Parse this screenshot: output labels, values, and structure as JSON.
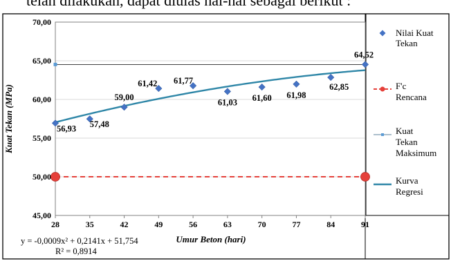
{
  "page_caption_fragment": "telah dilakukan, dapat diulas hal-hal sebagai berikut :",
  "equation": {
    "line1": "y = -0,0009x² + 0,2141x + 51,754",
    "line2": "R² = 0,8914"
  },
  "colors": {
    "points": "#4472c4",
    "target": "#e5403a",
    "max": "#5b9bd5",
    "regression": "#2e86a7",
    "frame": "#000000"
  },
  "chart_data": {
    "type": "scatter",
    "xlabel": "Umur Beton (hari)",
    "ylabel": "Kuat Tekan (MPa)",
    "ylim": [
      45,
      70
    ],
    "xlim": [
      28,
      91
    ],
    "x_ticks": [
      "28",
      "35",
      "42",
      "49",
      "56",
      "63",
      "70",
      "77",
      "84",
      "91"
    ],
    "y_ticks": [
      {
        "value": 45,
        "label": "45,00"
      },
      {
        "value": 50,
        "label": "50,00"
      },
      {
        "value": 55,
        "label": "55,00"
      },
      {
        "value": 60,
        "label": "60,00"
      },
      {
        "value": 65,
        "label": "65,00"
      },
      {
        "value": 70,
        "label": "70,00"
      }
    ],
    "grid": "horizontal",
    "legend_position": "right",
    "series": [
      {
        "name": "Nilai Kuat Tekan",
        "kind": "points",
        "x": [
          28,
          35,
          42,
          49,
          56,
          63,
          70,
          77,
          84,
          91
        ],
        "y": [
          56.93,
          57.48,
          59.0,
          61.42,
          61.77,
          61.03,
          61.6,
          61.98,
          62.85,
          64.52
        ],
        "labels": [
          "56,93",
          "57,48",
          "59,00",
          "61,42",
          "61,77",
          "61,03",
          "61,60",
          "61,98",
          "62,85",
          "64,52"
        ]
      },
      {
        "name": "F'c Rencana",
        "kind": "dashed-line",
        "x": [
          28,
          91
        ],
        "y": [
          50,
          50
        ]
      },
      {
        "name": "Kuat Tekan Maksimum",
        "kind": "line",
        "x": [
          28,
          91
        ],
        "y": [
          64.52,
          64.52
        ]
      },
      {
        "name": "Kurva Regresi",
        "kind": "curve",
        "coefficients": {
          "a": -0.0009,
          "b": 0.2141,
          "c": 51.754
        },
        "x_range": [
          28,
          91
        ]
      }
    ],
    "legend": [
      {
        "key": "points",
        "lines": [
          "Nilai Kuat",
          "Tekan"
        ]
      },
      {
        "key": "target",
        "lines": [
          "F'c",
          "Rencana"
        ]
      },
      {
        "key": "max",
        "lines": [
          "Kuat",
          "Tekan",
          "Maksimum"
        ]
      },
      {
        "key": "regression",
        "lines": [
          "Kurva",
          "Regresi"
        ]
      }
    ]
  }
}
